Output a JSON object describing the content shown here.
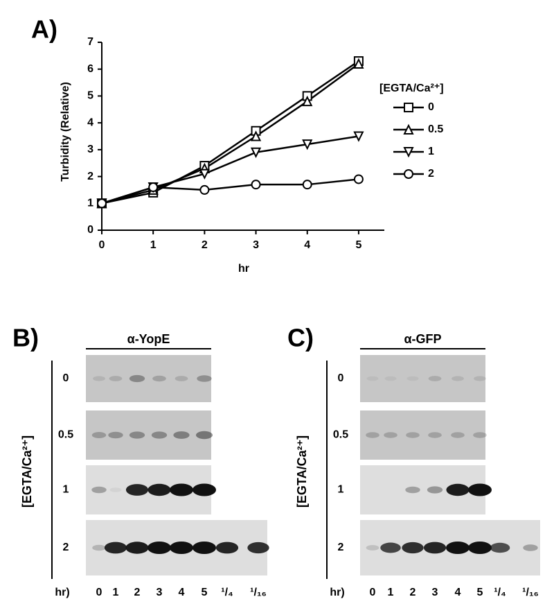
{
  "chart_data": {
    "type": "line",
    "panel_label": "A)",
    "x_label": "hr",
    "y_label": "Turbidity (Relative)",
    "x": [
      0,
      1,
      2,
      3,
      4,
      5
    ],
    "xlim": [
      0,
      5.5
    ],
    "xticks": [
      0,
      1,
      2,
      3,
      4,
      5
    ],
    "ylim": [
      0,
      7
    ],
    "yticks": [
      0,
      1,
      2,
      3,
      4,
      5,
      6,
      7
    ],
    "grid": false,
    "legend_title": "[EGTA/Ca²⁺]",
    "legend_position": "right",
    "series": [
      {
        "name": "0",
        "color": "#000000",
        "marker": "square",
        "values": [
          1,
          1.4,
          2.4,
          3.7,
          5.0,
          6.3
        ]
      },
      {
        "name": "0.5",
        "color": "#000000",
        "marker": "triangle-up",
        "values": [
          1,
          1.5,
          2.3,
          3.5,
          4.8,
          6.2
        ]
      },
      {
        "name": "1",
        "color": "#000000",
        "marker": "triangle-down",
        "values": [
          1,
          1.6,
          2.1,
          2.9,
          3.2,
          3.5
        ]
      },
      {
        "name": "2",
        "color": "#000000",
        "marker": "circle",
        "values": [
          1,
          1.6,
          1.5,
          1.7,
          1.7,
          1.9
        ]
      }
    ]
  },
  "blots": [
    {
      "label": "B)",
      "antibody": "α-YopE",
      "row_title": "[EGTA/Ca²⁺]",
      "rows": [
        "0",
        "0.5",
        "1",
        "2"
      ],
      "lanes_title": "hr)",
      "lanes": [
        "0",
        "1",
        "2",
        "3",
        "4",
        "5",
        "¹/₄",
        "¹/₁₆"
      ]
    },
    {
      "label": "C)",
      "antibody": "α-GFP",
      "row_title": "[EGTA/Ca²⁺]",
      "rows": [
        "0",
        "0.5",
        "1",
        "2"
      ],
      "lanes_title": "hr)",
      "lanes": [
        "0",
        "1",
        "2",
        "3",
        "4",
        "5",
        "¹/₄",
        "¹/₁₆"
      ]
    }
  ]
}
